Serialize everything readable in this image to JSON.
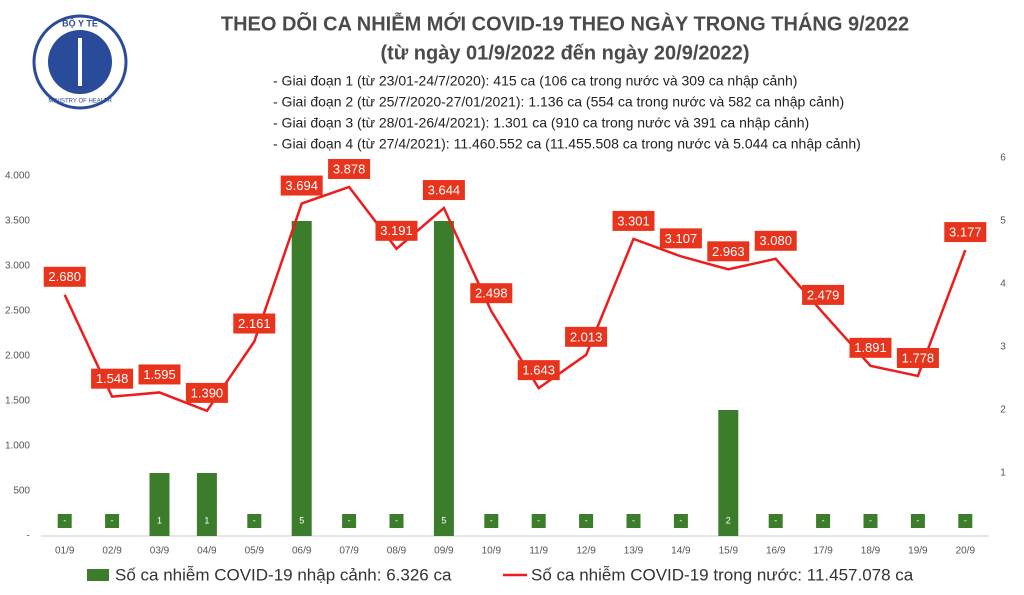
{
  "logo": {
    "top": "BỘ Y TẾ",
    "bottom": "MINISTRY OF HEALTH"
  },
  "chart_data": {
    "type": "bar-line",
    "title": "THEO DÕI CA NHIỄM MỚI COVID-19 THEO NGÀY TRONG THÁNG 9/2022",
    "subtitle": "(từ ngày 01/9/2022 đến ngày 20/9/2022)",
    "annotations": [
      "- Giai đoạn 1 (từ 23/01-24/7/2020): 415 ca (106 ca trong nước và 309 ca nhập cảnh)",
      "- Giai đoạn 2 (từ 25/7/2020-27/01/2021): 1.136 ca (554 ca trong nước và 582 ca nhập cảnh)",
      "- Giai đoạn 3 (từ 28/01-26/4/2021): 1.301 ca (910 ca trong nước và 391 ca nhập cảnh)",
      "- Giai đoạn 4 (từ 27/4/2021): 11.460.552 ca (11.455.508 ca trong nước và 5.044 ca nhập cảnh)"
    ],
    "categories": [
      "01/9",
      "02/9",
      "03/9",
      "04/9",
      "05/9",
      "06/9",
      "07/9",
      "08/9",
      "09/9",
      "10/9",
      "11/9",
      "12/9",
      "13/9",
      "14/9",
      "15/9",
      "16/9",
      "17/9",
      "18/9",
      "19/9",
      "20/9"
    ],
    "series": [
      {
        "name": "Số ca nhiễm COVID-19 nhập cảnh: 6.326 ca",
        "type": "bar",
        "axis": "y2",
        "color": "#3b7d2a",
        "values": [
          0,
          0,
          1,
          1,
          0,
          5,
          0,
          0,
          5,
          0,
          0,
          0,
          0,
          0,
          2,
          0,
          0,
          0,
          0,
          0
        ],
        "value_labels": [
          "-",
          "-",
          "1",
          "1",
          "-",
          "5",
          "-",
          "-",
          "5",
          "-",
          "-",
          "-",
          "-",
          "-",
          "2",
          "-",
          "-",
          "-",
          "-",
          "-"
        ]
      },
      {
        "name": "Số ca nhiễm COVID-19 trong nước: 11.457.078 ca",
        "type": "line",
        "color": "#ee1c1c",
        "values": [
          2680,
          1548,
          1595,
          1390,
          2161,
          3694,
          3878,
          3191,
          3644,
          2498,
          1643,
          2013,
          3301,
          3107,
          2963,
          3080,
          2479,
          1891,
          1778,
          3177
        ],
        "value_labels": [
          "2.680",
          "1.548",
          "1.595",
          "1.390",
          "2.161",
          "3.694",
          "3.878",
          "3.191",
          "3.644",
          "2.498",
          "1.643",
          "2.013",
          "3.301",
          "3.107",
          "2.963",
          "3.080",
          "2.479",
          "1.891",
          "1.778",
          "3.177"
        ]
      }
    ],
    "ylim": [
      0,
      4200
    ],
    "yticks": [
      {
        "value": 0,
        "label": "-"
      },
      500,
      {
        "value": 1000,
        "label": "1.000"
      },
      {
        "value": 1500,
        "label": "1.500"
      },
      {
        "value": 2000,
        "label": "2.000"
      },
      {
        "value": 2500,
        "label": "2.500"
      },
      {
        "value": 3000,
        "label": "3.000"
      },
      {
        "value": 3500,
        "label": "3.500"
      },
      {
        "value": 4000,
        "label": "4.000"
      }
    ],
    "y2lim": [
      0,
      6
    ],
    "y2ticks": [
      1,
      2,
      3,
      4,
      5,
      6
    ]
  }
}
